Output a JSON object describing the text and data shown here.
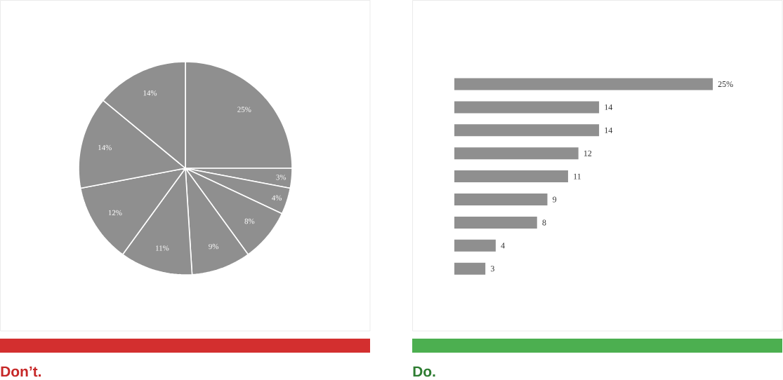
{
  "chart_data": [
    {
      "type": "pie",
      "title": "Don’t.",
      "categories": [
        null,
        null,
        null,
        null,
        null,
        null,
        null,
        null,
        null
      ],
      "values": [
        25,
        3,
        4,
        8,
        9,
        11,
        12,
        14,
        14
      ],
      "colors": [
        "#8f8f8f",
        "#8f8f8f",
        "#8f8f8f",
        "#8f8f8f",
        "#8f8f8f",
        "#8f8f8f",
        "#8f8f8f",
        "#8f8f8f",
        "#8f8f8f"
      ],
      "value_labels": [
        "25%",
        "3%",
        "4%",
        "8%",
        "9%",
        "11%",
        "12%",
        "14%",
        "14%"
      ]
    },
    {
      "type": "bar",
      "orientation": "horizontal",
      "title": "Do.",
      "categories": [
        null,
        null,
        null,
        null,
        null,
        null,
        null,
        null,
        null
      ],
      "values": [
        25,
        14,
        14,
        12,
        11,
        9,
        8,
        4,
        3
      ],
      "color": "#8f8f8f",
      "value_labels": [
        "25%",
        "14",
        "14",
        "12",
        "11",
        "9",
        "8",
        "4",
        "3"
      ]
    }
  ]
}
